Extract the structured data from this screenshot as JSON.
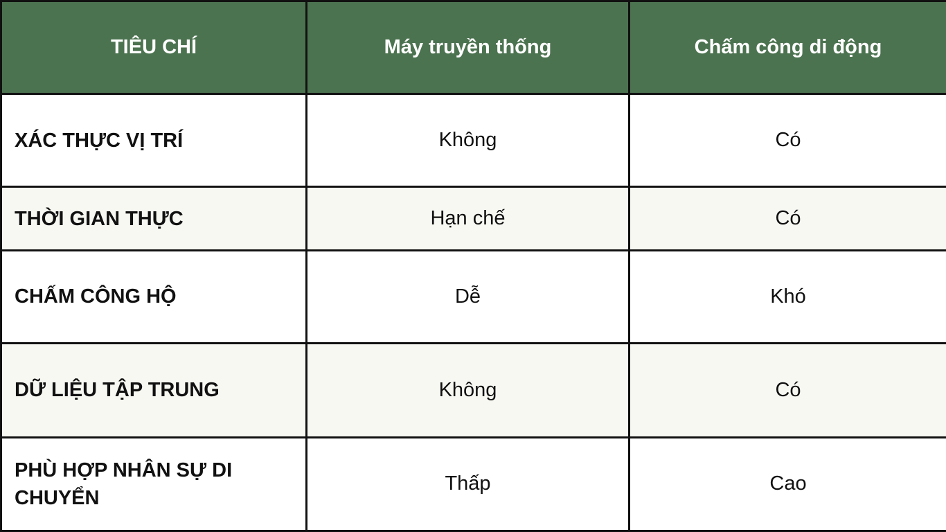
{
  "colors": {
    "header_bg": "#4C7350",
    "header_text": "#FFFFFF",
    "alt_row_bg": "#F7F8F2",
    "border": "#111111"
  },
  "table": {
    "headers": [
      "TIÊU CHÍ",
      "Máy truyền thống",
      "Chấm công di động"
    ],
    "rows": [
      [
        "XÁC THỰC VỊ TRÍ",
        "Không",
        "Có"
      ],
      [
        "THỜI GIAN THỰC",
        "Hạn chế",
        "Có"
      ],
      [
        "CHẤM CÔNG HỘ",
        "Dễ",
        "Khó"
      ],
      [
        "DỮ LIỆU TẬP TRUNG",
        "Không",
        "Có"
      ],
      [
        "PHÙ HỢP NHÂN SỰ DI CHUYỂN",
        "Thấp",
        "Cao"
      ]
    ]
  }
}
